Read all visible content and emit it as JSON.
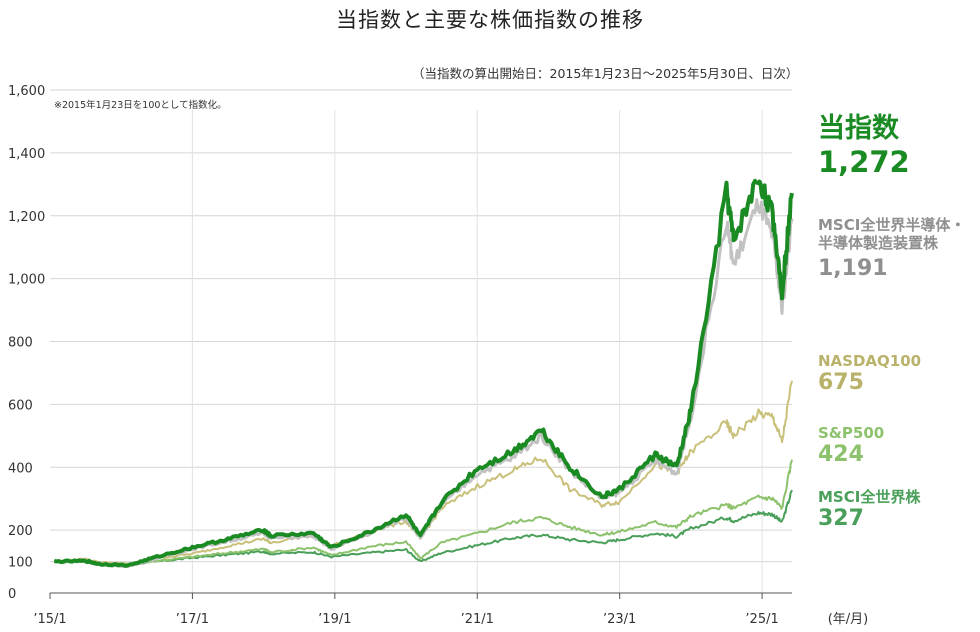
{
  "header": {
    "title": "当指数と主要な株価指数の推移",
    "subtitle": "（当指数の算出開始日：2015年1月23日～2025年5月30日、日次）",
    "note": "※2015年1月23日を100として指数化。"
  },
  "chart_data": {
    "type": "line",
    "title": "当指数と主要な株価指数の推移",
    "xlabel": "(年/月)",
    "ylabel": "",
    "ylim": [
      0,
      1600
    ],
    "xlim": [
      2015.06,
      2025.42
    ],
    "y_ticks": [
      {
        "value": 0,
        "label": "0"
      },
      {
        "value": 100,
        "label": "100"
      },
      {
        "value": 200,
        "label": "200"
      },
      {
        "value": 400,
        "label": "400"
      },
      {
        "value": 600,
        "label": "600"
      },
      {
        "value": 800,
        "label": "800"
      },
      {
        "value": 1000,
        "label": "1,000"
      },
      {
        "value": 1200,
        "label": "1,200"
      },
      {
        "value": 1400,
        "label": "1,400"
      },
      {
        "value": 1600,
        "label": "1,600"
      }
    ],
    "x_ticks": [
      {
        "value": 2015.0,
        "label": "’15/1"
      },
      {
        "value": 2017.0,
        "label": "’17/1"
      },
      {
        "value": 2019.0,
        "label": "’19/1"
      },
      {
        "value": 2021.0,
        "label": "’21/1"
      },
      {
        "value": 2023.0,
        "label": "’23/1"
      },
      {
        "value": 2025.0,
        "label": "’25/1"
      }
    ],
    "grid": true,
    "series": [
      {
        "name": "MSCI全世界株",
        "final_label": "327",
        "color": "#4aa05a",
        "width": 2,
        "x": [
          2015.06,
          2015.5,
          2015.7,
          2016.1,
          2016.5,
          2017.0,
          2017.5,
          2018.0,
          2018.1,
          2018.7,
          2018.95,
          2019.5,
          2020.0,
          2020.2,
          2020.5,
          2021.0,
          2021.5,
          2021.9,
          2022.3,
          2022.75,
          2023.0,
          2023.5,
          2023.8,
          2024.0,
          2024.5,
          2024.6,
          2024.95,
          2025.15,
          2025.28,
          2025.42
        ],
        "values": [
          100,
          105,
          95,
          90,
          100,
          112,
          122,
          132,
          125,
          130,
          115,
          128,
          138,
          100,
          128,
          152,
          175,
          185,
          170,
          160,
          170,
          190,
          180,
          205,
          240,
          230,
          255,
          250,
          225,
          327
        ]
      },
      {
        "name": "S&P500",
        "final_label": "424",
        "color": "#8dc26d",
        "width": 2,
        "x": [
          2015.06,
          2015.5,
          2015.7,
          2016.1,
          2016.5,
          2017.0,
          2017.5,
          2018.0,
          2018.1,
          2018.7,
          2018.95,
          2019.5,
          2020.0,
          2020.2,
          2020.5,
          2021.0,
          2021.5,
          2021.9,
          2022.3,
          2022.75,
          2023.0,
          2023.5,
          2023.8,
          2024.0,
          2024.5,
          2024.6,
          2024.95,
          2025.15,
          2025.28,
          2025.42
        ],
        "values": [
          100,
          103,
          95,
          92,
          102,
          115,
          128,
          140,
          130,
          145,
          120,
          148,
          163,
          110,
          160,
          190,
          225,
          240,
          210,
          185,
          195,
          225,
          210,
          245,
          280,
          270,
          305,
          300,
          270,
          424
        ]
      },
      {
        "name": "NASDAQ100",
        "final_label": "675",
        "color": "#c9c07a",
        "width": 2,
        "x": [
          2015.06,
          2015.5,
          2015.7,
          2016.1,
          2016.5,
          2017.0,
          2017.5,
          2018.0,
          2018.1,
          2018.7,
          2018.95,
          2019.5,
          2020.0,
          2020.2,
          2020.5,
          2021.0,
          2021.5,
          2021.9,
          2022.3,
          2022.75,
          2023.0,
          2023.5,
          2023.8,
          2024.0,
          2024.5,
          2024.6,
          2024.95,
          2025.15,
          2025.28,
          2025.42
        ],
        "values": [
          100,
          108,
          98,
          92,
          110,
          125,
          150,
          172,
          160,
          185,
          150,
          195,
          228,
          175,
          270,
          340,
          390,
          430,
          330,
          280,
          290,
          410,
          380,
          450,
          540,
          500,
          570,
          560,
          480,
          675
        ]
      },
      {
        "name": "MSCI全世界半導体・半導体製造装置株",
        "final_label": "1,191",
        "color": "#c2c2c2",
        "width": 3,
        "x": [
          2015.06,
          2015.5,
          2015.7,
          2016.1,
          2016.5,
          2017.0,
          2017.5,
          2018.0,
          2018.1,
          2018.7,
          2018.95,
          2019.5,
          2020.0,
          2020.2,
          2020.5,
          2021.0,
          2021.5,
          2021.9,
          2022.3,
          2022.75,
          2023.0,
          2023.5,
          2023.8,
          2024.0,
          2024.5,
          2024.6,
          2024.95,
          2025.15,
          2025.28,
          2025.42
        ],
        "values": [
          100,
          100,
          90,
          85,
          110,
          140,
          165,
          190,
          175,
          180,
          140,
          190,
          240,
          175,
          280,
          380,
          430,
          500,
          390,
          300,
          320,
          420,
          380,
          560,
          1180,
          1040,
          1240,
          1130,
          900,
          1191
        ]
      },
      {
        "name": "当指数",
        "final_label": "1,272",
        "color": "#1a8a23",
        "width": 4,
        "x": [
          2015.06,
          2015.5,
          2015.7,
          2016.1,
          2016.5,
          2017.0,
          2017.5,
          2018.0,
          2018.1,
          2018.7,
          2018.95,
          2019.5,
          2020.0,
          2020.2,
          2020.5,
          2021.0,
          2021.5,
          2021.9,
          2022.3,
          2022.75,
          2023.0,
          2023.5,
          2023.8,
          2024.0,
          2024.5,
          2024.6,
          2024.95,
          2025.15,
          2025.28,
          2025.42
        ],
        "values": [
          100,
          102,
          92,
          88,
          115,
          145,
          172,
          200,
          182,
          190,
          145,
          195,
          250,
          180,
          290,
          395,
          450,
          520,
          400,
          305,
          330,
          440,
          400,
          580,
          1280,
          1120,
          1320,
          1200,
          960,
          1272
        ]
      }
    ]
  },
  "legend": {
    "main": {
      "name": "当指数",
      "value": "1,272",
      "color": "#1a8a23"
    },
    "semi": {
      "name": "MSCI全世界半導体・半導体製造装置株",
      "value": "1,191",
      "color": "#8f8f8f"
    },
    "nasdaq": {
      "name": "NASDAQ100",
      "value": "675",
      "color": "#b9b26a"
    },
    "sp500": {
      "name": "S&P500",
      "value": "424",
      "color": "#8dc26d"
    },
    "acwi": {
      "name": "MSCI全世界株",
      "value": "327",
      "color": "#4aa05a"
    }
  }
}
